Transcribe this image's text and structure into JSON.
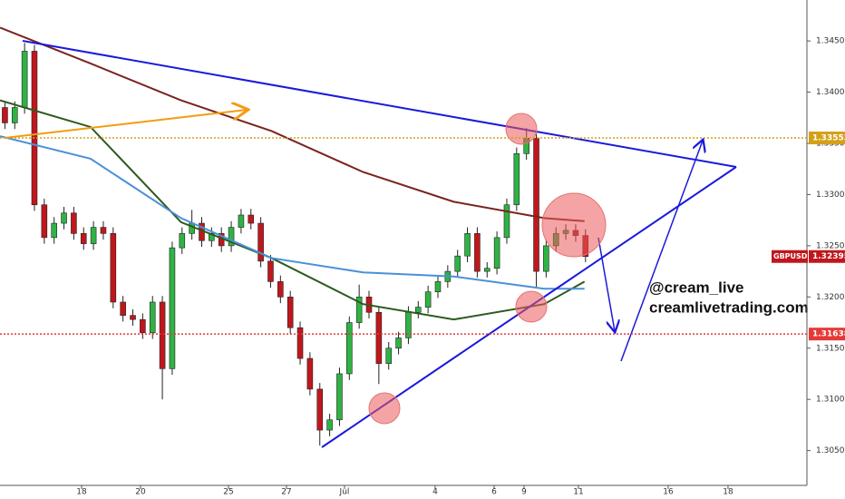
{
  "chart_data": {
    "type": "candlestick",
    "symbol": "GBPUSD",
    "x": [
      0,
      1,
      2,
      3,
      4,
      5,
      6,
      7,
      8,
      9,
      10,
      11,
      12,
      13,
      14,
      15,
      16,
      17,
      18,
      19,
      20,
      21,
      22,
      23,
      24,
      25,
      26,
      27,
      28,
      29,
      30,
      31,
      32,
      33,
      34,
      35,
      36,
      37,
      38,
      39,
      40,
      41,
      42,
      43,
      44,
      45,
      46,
      47,
      48,
      49,
      50,
      51,
      52,
      53,
      54,
      55,
      56,
      57,
      58,
      59
    ],
    "open": [
      1.3385,
      1.337,
      1.3385,
      1.344,
      1.329,
      1.3258,
      1.3272,
      1.3282,
      1.3262,
      1.3252,
      1.3268,
      1.3262,
      1.3195,
      1.3182,
      1.3178,
      1.3165,
      1.3195,
      1.313,
      1.3248,
      1.3262,
      1.3272,
      1.3255,
      1.3262,
      1.325,
      1.3268,
      1.328,
      1.3272,
      1.3235,
      1.3215,
      1.32,
      1.317,
      1.314,
      1.311,
      1.307,
      1.308,
      1.3125,
      1.3175,
      1.32,
      1.3185,
      1.3135,
      1.315,
      1.316,
      1.3185,
      1.319,
      1.3205,
      1.3215,
      1.3225,
      1.324,
      1.3262,
      1.3225,
      1.3228,
      1.3258,
      1.329,
      1.334,
      1.3355,
      1.3225,
      1.325,
      1.3262,
      1.3265,
      1.326
    ],
    "high": [
      1.3391,
      1.3391,
      1.3448,
      1.3446,
      1.3296,
      1.3278,
      1.3288,
      1.3288,
      1.3268,
      1.3274,
      1.3274,
      1.3268,
      1.3201,
      1.3188,
      1.3184,
      1.3201,
      1.3201,
      1.3254,
      1.3268,
      1.3285,
      1.3278,
      1.3268,
      1.3268,
      1.3274,
      1.3286,
      1.3286,
      1.3278,
      1.3241,
      1.3221,
      1.3206,
      1.3176,
      1.3146,
      1.3116,
      1.3086,
      1.3131,
      1.3181,
      1.3212,
      1.3206,
      1.3191,
      1.3156,
      1.3166,
      1.3191,
      1.3196,
      1.3211,
      1.3221,
      1.3231,
      1.3246,
      1.3268,
      1.3268,
      1.3234,
      1.3264,
      1.3296,
      1.3346,
      1.3365,
      1.3361,
      1.3256,
      1.3268,
      1.3271,
      1.3271,
      1.3266
    ],
    "low": [
      1.3364,
      1.3364,
      1.3379,
      1.3284,
      1.3252,
      1.3252,
      1.3266,
      1.3256,
      1.3246,
      1.3246,
      1.3256,
      1.3189,
      1.3176,
      1.3172,
      1.3159,
      1.3159,
      1.31,
      1.3124,
      1.3242,
      1.3256,
      1.3249,
      1.3249,
      1.3244,
      1.3244,
      1.3262,
      1.3266,
      1.3229,
      1.3209,
      1.3194,
      1.3164,
      1.3134,
      1.3104,
      1.3055,
      1.3064,
      1.3074,
      1.3119,
      1.3169,
      1.3179,
      1.3115,
      1.3129,
      1.3144,
      1.3154,
      1.3179,
      1.3184,
      1.3199,
      1.3209,
      1.3219,
      1.3234,
      1.3219,
      1.3219,
      1.3222,
      1.3252,
      1.3284,
      1.3334,
      1.321,
      1.3219,
      1.3244,
      1.3256,
      1.3254,
      1.3234
    ],
    "close": [
      1.337,
      1.3385,
      1.344,
      1.329,
      1.3258,
      1.3272,
      1.3282,
      1.3262,
      1.3252,
      1.3268,
      1.3262,
      1.3195,
      1.3182,
      1.3178,
      1.3165,
      1.3195,
      1.313,
      1.3248,
      1.3262,
      1.3272,
      1.3255,
      1.3262,
      1.325,
      1.3268,
      1.328,
      1.3272,
      1.3235,
      1.3215,
      1.32,
      1.317,
      1.314,
      1.311,
      1.307,
      1.308,
      1.3125,
      1.3175,
      1.32,
      1.3185,
      1.3135,
      1.315,
      1.316,
      1.3185,
      1.319,
      1.3205,
      1.3215,
      1.3225,
      1.324,
      1.3262,
      1.3225,
      1.3228,
      1.3258,
      1.329,
      1.334,
      1.3355,
      1.3225,
      1.325,
      1.3262,
      1.3265,
      1.326,
      1.32395
    ],
    "up_color": "#2fb344",
    "down_color": "#c0171c",
    "moving_averages": [
      {
        "color": "#7a2323",
        "x": [
          -0.5,
          8.7,
          17.9,
          27.1,
          36.4,
          45.6,
          54.8,
          58.9
        ],
        "values": [
          1.3463,
          1.3428,
          1.3392,
          1.3362,
          1.3322,
          1.3293,
          1.3277,
          1.3274
        ]
      },
      {
        "color": "#2d5a1e",
        "x": [
          -0.5,
          8.7,
          17.9,
          27.1,
          36.4,
          45.6,
          54.8,
          58.9
        ],
        "values": [
          1.3392,
          1.3366,
          1.3273,
          1.3238,
          1.3193,
          1.3178,
          1.3193,
          1.3215
        ]
      },
      {
        "color": "#4a90d9",
        "x": [
          -0.5,
          8.7,
          17.9,
          27.1,
          36.4,
          45.6,
          54.8,
          58.9
        ],
        "values": [
          1.3357,
          1.3335,
          1.3277,
          1.3238,
          1.3224,
          1.322,
          1.3208,
          1.3208
        ]
      }
    ],
    "levels": [
      {
        "value": 1.33553,
        "color": "#d4a017"
      },
      {
        "value": 1.31638,
        "color": "#e53935"
      }
    ],
    "last_price": 1.32395,
    "annotations": [
      "@cream_live",
      "creamlivetrading.com"
    ],
    "xlim": [
      -0.5,
      81.5
    ],
    "ylim": [
      1.3016,
      1.349
    ],
    "xticks": [
      {
        "value": 7.79,
        "label": "18"
      },
      {
        "value": 13.78,
        "label": "20"
      },
      {
        "value": 22.72,
        "label": "25"
      },
      {
        "value": 28.61,
        "label": "27"
      },
      {
        "value": 34.51,
        "label": "Jul"
      },
      {
        "value": 43.72,
        "label": "4"
      },
      {
        "value": 49.71,
        "label": "6"
      },
      {
        "value": 52.75,
        "label": "9"
      },
      {
        "value": 58.28,
        "label": "11"
      },
      {
        "value": 67.4,
        "label": "16"
      },
      {
        "value": 73.48,
        "label": "18"
      }
    ],
    "yticks": [
      {
        "value": 1.345,
        "label": "1.34500"
      },
      {
        "value": 1.34,
        "label": "1.34000"
      },
      {
        "value": 1.335,
        "label": "1.33500"
      },
      {
        "value": 1.33,
        "label": "1.33000"
      },
      {
        "value": 1.325,
        "label": "1.32500"
      },
      {
        "value": 1.32,
        "label": "1.32000"
      },
      {
        "value": 1.315,
        "label": "1.31500"
      },
      {
        "value": 1.31,
        "label": "1.31000"
      },
      {
        "value": 1.305,
        "label": "1.30500"
      }
    ]
  }
}
